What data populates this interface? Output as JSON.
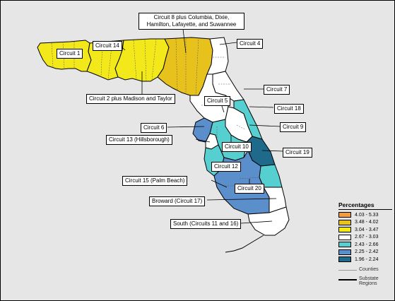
{
  "map": {
    "labels": {
      "circuit1": "Circuit 1",
      "circuit14": "Circuit 14",
      "circuit8": "Circuit 8 plus Columbia, Dixie, Hamilton, Lafayette, and Suwannee",
      "circuit4": "Circuit 4",
      "circuit2": "Circuit 2 plus Madison and Taylor",
      "circuit7": "Circuit 7",
      "circuit5": "Circuit 5",
      "circuit18": "Circuit 18",
      "circuit6": "Circuit 6",
      "circuit9": "Circuit 9",
      "circuit13": "Circuit 13 (Hillsborough)",
      "circuit10": "Circuit 10",
      "circuit19": "Circuit 19",
      "circuit12": "Circuit 12",
      "circuit15": "Circuit 15 (Palm Beach)",
      "circuit20": "Circuit 20",
      "circuit17": "Broward (Circuit 17)",
      "south": "South (Circuits 11 and 16)"
    },
    "region_classes": {
      "circuit1": "3.04 - 3.47",
      "circuit14": "3.04 - 3.47",
      "circuit2": "3.04 - 3.47",
      "circuit8": "3.48 - 4.02",
      "circuit4": "2.67 - 3.03",
      "circuit7": "2.67 - 3.03",
      "circuit5": "2.67 - 3.03",
      "circuit6": "2.25 - 2.42",
      "circuit13": "2.67 - 3.03",
      "circuit10": "2.43 - 2.66",
      "circuit18": "2.43 - 2.66",
      "circuit9": "2.67 - 3.03",
      "circuit19": "1.96 - 2.24",
      "circuit12": "2.43 - 2.66",
      "circuit15": "2.43 - 2.66",
      "circuit20": "2.25 - 2.42",
      "circuit17": "2.67 - 3.03",
      "south": "2.67 - 3.03"
    }
  },
  "legend": {
    "title": "Percentages",
    "classes": [
      {
        "label": "4.03 - 5.33",
        "color": "#f39b3f"
      },
      {
        "label": "3.48 - 4.02",
        "color": "#e8c21c"
      },
      {
        "label": "3.04 - 3.47",
        "color": "#f2e81a"
      },
      {
        "label": "2.67 - 3.03",
        "color": "#ffffff"
      },
      {
        "label": "2.43 - 2.66",
        "color": "#56cfd0"
      },
      {
        "label": "2.25 - 2.42",
        "color": "#5b8fcc"
      },
      {
        "label": "1.96 - 2.24",
        "color": "#1f6a8a"
      }
    ],
    "counties_label": "Counties",
    "substate_label": "Substate Regions"
  },
  "colors": {
    "background": "#e6e6e6",
    "county_line": "#555555",
    "boundary": "#000000"
  }
}
